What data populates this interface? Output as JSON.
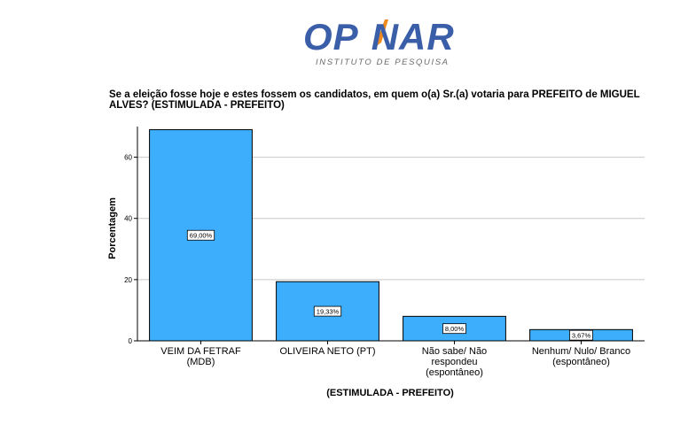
{
  "logo": {
    "name": "OP\u0001NAR",
    "subtitle": "INSTITUTO DE PESQUISA"
  },
  "colors": {
    "bar_fill": "#3daefc",
    "bar_stroke": "#000000",
    "grid": "#c8c8c8",
    "logo_blue": "#3a5ea8",
    "logo_orange": "#f08a1c"
  },
  "chart_data": {
    "type": "bar",
    "title": "Se a eleição fosse hoje e estes fossem os candidatos, em quem o(a) Sr.(a) votaria para PREFEITO de MIGUEL ALVES? (ESTIMULADA - PREFEITO)",
    "xlabel": "(ESTIMULADA - PREFEITO)",
    "ylabel": "Porcentagem",
    "ylim": [
      0,
      70
    ],
    "yticks": [
      0,
      20,
      40,
      60
    ],
    "grid": true,
    "categories": [
      [
        "VEIM DA FETRAF",
        "(MDB)"
      ],
      [
        "OLIVEIRA NETO (PT)"
      ],
      [
        "Não sabe/ Não",
        "respondeu",
        "(espontâneo)"
      ],
      [
        "Nenhum/ Nulo/ Branco",
        "(espontâneo)"
      ]
    ],
    "values": [
      69.0,
      19.33,
      8.0,
      3.67
    ],
    "value_labels": [
      "69,00%",
      "19,33%",
      "8,00%",
      "3,67%"
    ]
  }
}
